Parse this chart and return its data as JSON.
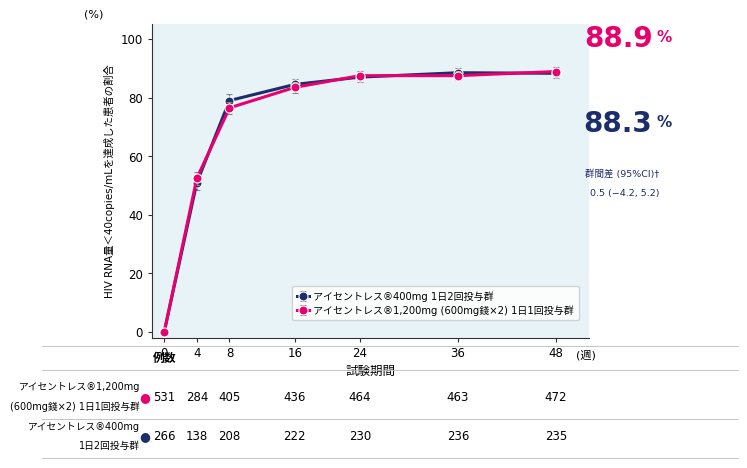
{
  "x": [
    0,
    4,
    8,
    16,
    24,
    36,
    48
  ],
  "y_pink": [
    0,
    52.5,
    76.5,
    83.5,
    87.5,
    87.5,
    88.9
  ],
  "y_navy": [
    0,
    51.0,
    79.0,
    84.5,
    87.0,
    88.5,
    88.3
  ],
  "yerr_pink": [
    0,
    2.2,
    2.0,
    1.8,
    1.6,
    1.6,
    1.5
  ],
  "yerr_navy": [
    0,
    2.5,
    2.1,
    1.8,
    1.7,
    1.5,
    1.5
  ],
  "color_pink": "#E8006F",
  "color_navy": "#1B2D6B",
  "bg_fill": "#E8F3F8",
  "xlabel": "試験期間",
  "ylabel": "HIV RNA量＜40copies/mLを達成した患者の割合",
  "yunit": "(%)",
  "xunit": "(週)",
  "xticks": [
    0,
    4,
    8,
    16,
    24,
    36,
    48
  ],
  "yticks": [
    0,
    20,
    40,
    60,
    80,
    100
  ],
  "ylim": [
    -2,
    105
  ],
  "xlim": [
    -1.5,
    52
  ],
  "label_pink": "アイセントレス®1,200mg (600mg錢×2) 1日1回投与群",
  "label_navy": "アイセントレス®400mg 1日2回投与群",
  "val_pink_final": "88.9",
  "val_navy_final": "88.3",
  "note_line1": "群間差 (95%CI)†",
  "note_line2": "0.5 (−4.2, 5.2)",
  "table_header": "例数",
  "table_row1_label1": "アイセントレス®1,200mg",
  "table_row1_label2": "(600mg錢×2) 1日1回投与群",
  "table_row2_label1": "アイセントレス®400mg",
  "table_row2_label2": "1日2回投与群",
  "table_row1": [
    531,
    284,
    405,
    436,
    464,
    463,
    472
  ],
  "table_row2": [
    266,
    138,
    208,
    222,
    230,
    236,
    235
  ]
}
